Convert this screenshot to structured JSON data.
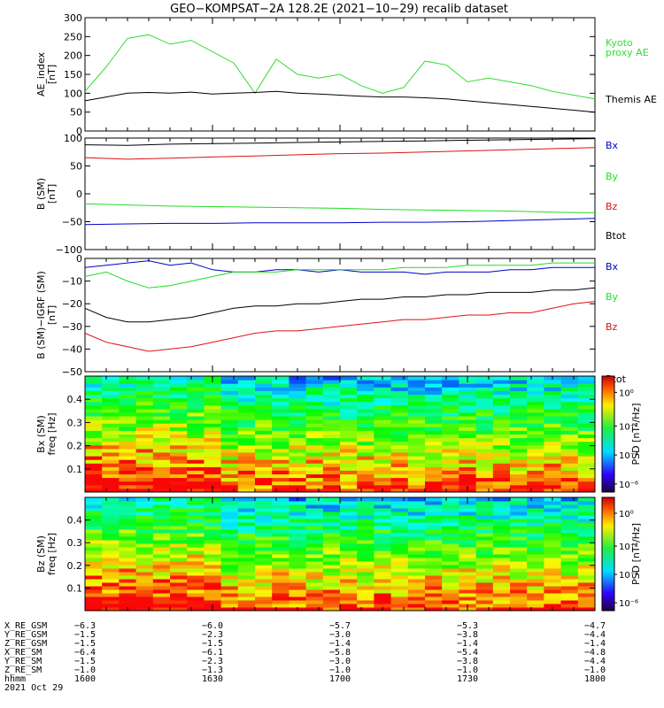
{
  "title": "GEO−KOMPSAT−2A 128.2E (2021−10−29) recalib dataset",
  "colors": {
    "black": "#000000",
    "red": "#dd1111",
    "green": "#22dd22",
    "blue": "#0000cc",
    "ae_green": "#33dd33"
  },
  "chart_data": [
    {
      "id": "ae",
      "type": "line",
      "ylabel": [
        "AE_index",
        "[nT]"
      ],
      "ylim": [
        0,
        300
      ],
      "yticks": [
        0,
        50,
        100,
        150,
        200,
        250,
        300
      ],
      "x": [
        0,
        10,
        20,
        30,
        40,
        50,
        60,
        70,
        80,
        90,
        100,
        110,
        120,
        130,
        140,
        150,
        160,
        170,
        180,
        190,
        200,
        210,
        220,
        230,
        240
      ],
      "series": [
        {
          "name": "Kyoto\nproxy AE",
          "color": "#33dd33",
          "values": [
            105,
            170,
            245,
            255,
            230,
            240,
            210,
            180,
            100,
            190,
            150,
            140,
            150,
            120,
            100,
            115,
            185,
            175,
            130,
            140,
            130,
            120,
            105,
            95,
            85
          ]
        },
        {
          "name": "Themis AE",
          "color": "#000000",
          "values": [
            80,
            90,
            100,
            102,
            100,
            103,
            98,
            100,
            102,
            105,
            100,
            98,
            95,
            92,
            90,
            90,
            88,
            85,
            80,
            75,
            70,
            65,
            60,
            55,
            50
          ]
        }
      ]
    },
    {
      "id": "bsm",
      "type": "line",
      "ylabel": [
        "B (SM)",
        "[nT]"
      ],
      "ylim": [
        -100,
        100
      ],
      "yticks": [
        -100,
        -50,
        0,
        50,
        100
      ],
      "x": [
        0,
        20,
        40,
        60,
        80,
        100,
        120,
        140,
        160,
        180,
        200,
        220,
        240
      ],
      "series": [
        {
          "name": "Bx",
          "color": "#0000cc",
          "values": [
            -55,
            -54,
            -53,
            -53,
            -52,
            -52,
            -52,
            -51,
            -51,
            -50,
            -48,
            -46,
            -44
          ]
        },
        {
          "name": "By",
          "color": "#22dd22",
          "values": [
            -18,
            -20,
            -22,
            -23,
            -24,
            -25,
            -26,
            -28,
            -29,
            -30,
            -31,
            -33,
            -34
          ]
        },
        {
          "name": "Bz",
          "color": "#dd1111",
          "values": [
            65,
            62,
            64,
            66,
            68,
            70,
            72,
            73,
            75,
            77,
            79,
            81,
            83
          ]
        },
        {
          "name": "Btot",
          "color": "#000000",
          "values": [
            88,
            87,
            89,
            90,
            91,
            92,
            93,
            94,
            95,
            96,
            97,
            98,
            99
          ]
        }
      ]
    },
    {
      "id": "bigrf",
      "type": "line",
      "ylabel": [
        "B (SM)−IGRF (SM)",
        "[nT]"
      ],
      "ylim": [
        -50,
        0
      ],
      "yticks": [
        -50,
        -40,
        -30,
        -20,
        -10,
        0
      ],
      "x": [
        0,
        10,
        20,
        30,
        40,
        50,
        60,
        70,
        80,
        90,
        100,
        110,
        120,
        130,
        140,
        150,
        160,
        170,
        180,
        190,
        200,
        210,
        220,
        230,
        240
      ],
      "series": [
        {
          "name": "Bx",
          "color": "#0000cc",
          "values": [
            -4,
            -3,
            -2,
            -1,
            -3,
            -2,
            -5,
            -6,
            -6,
            -5,
            -5,
            -6,
            -5,
            -6,
            -6,
            -6,
            -7,
            -6,
            -6,
            -6,
            -5,
            -5,
            -4,
            -4,
            -4
          ]
        },
        {
          "name": "By",
          "color": "#22dd22",
          "values": [
            -8,
            -6,
            -10,
            -13,
            -12,
            -10,
            -8,
            -6,
            -6,
            -6,
            -5,
            -5,
            -5,
            -5,
            -5,
            -4,
            -4,
            -4,
            -3,
            -3,
            -3,
            -3,
            -2,
            -2,
            -2
          ]
        },
        {
          "name": "Bz",
          "color": "#dd1111",
          "values": [
            -33,
            -37,
            -39,
            -41,
            -40,
            -39,
            -37,
            -35,
            -33,
            -32,
            -32,
            -31,
            -30,
            -29,
            -28,
            -27,
            -27,
            -26,
            -25,
            -25,
            -24,
            -24,
            -22,
            -20,
            -19
          ]
        },
        {
          "name": "Btot",
          "color": "#000000",
          "values": [
            -22,
            -26,
            -28,
            -28,
            -27,
            -26,
            -24,
            -22,
            -21,
            -21,
            -20,
            -20,
            -19,
            -18,
            -18,
            -17,
            -17,
            -16,
            -16,
            -15,
            -15,
            -15,
            -14,
            -14,
            -13
          ]
        }
      ]
    },
    {
      "id": "spec_bx",
      "type": "heatmap",
      "ylabel": [
        "Bx (SM)",
        "freq [Hz]"
      ],
      "ylim": [
        0,
        0.5
      ],
      "yticks": [
        0.1,
        0.2,
        0.3,
        0.4
      ],
      "colorbar": {
        "label": "PSD [nT²/Hz]",
        "ticks": [
          "10⁰",
          "10⁻²",
          "10⁻⁴",
          "10⁻⁶"
        ]
      },
      "time_bins": 30,
      "freq_bins": 32
    },
    {
      "id": "spec_bz",
      "type": "heatmap",
      "ylabel": [
        "Bz (SM)",
        "freq [Hz]"
      ],
      "ylim": [
        0,
        0.5
      ],
      "yticks": [
        0.1,
        0.2,
        0.3,
        0.4
      ],
      "colorbar": {
        "label": "PSD [nT²/Hz]",
        "ticks": [
          "10⁰",
          "10⁻²",
          "10⁻⁴",
          "10⁻⁶"
        ]
      },
      "time_bins": 30,
      "freq_bins": 32
    }
  ],
  "ephemeris": {
    "labels": [
      "X_RE_GSM",
      "Y_RE_GSM",
      "Z_RE_GSM",
      "X_RE_SM",
      "Y_RE_SM",
      "Z_RE_SM",
      "hhmm",
      "2021 Oct 29"
    ],
    "columns": [
      [
        "−6.3",
        "−1.5",
        "−1.5",
        "−6.4",
        "−1.5",
        "−1.0",
        "1600"
      ],
      [
        "−6.0",
        "−2.3",
        "−1.5",
        "−6.1",
        "−2.3",
        "−1.3",
        "1630"
      ],
      [
        "−5.7",
        "−3.0",
        "−1.4",
        "−5.8",
        "−3.0",
        "−1.0",
        "1700"
      ],
      [
        "−5.3",
        "−3.8",
        "−1.4",
        "−5.4",
        "−3.8",
        "−1.0",
        "1730"
      ],
      [
        "−4.7",
        "−4.4",
        "−1.4",
        "−4.8",
        "−4.4",
        "−1.0",
        "1800"
      ]
    ]
  }
}
